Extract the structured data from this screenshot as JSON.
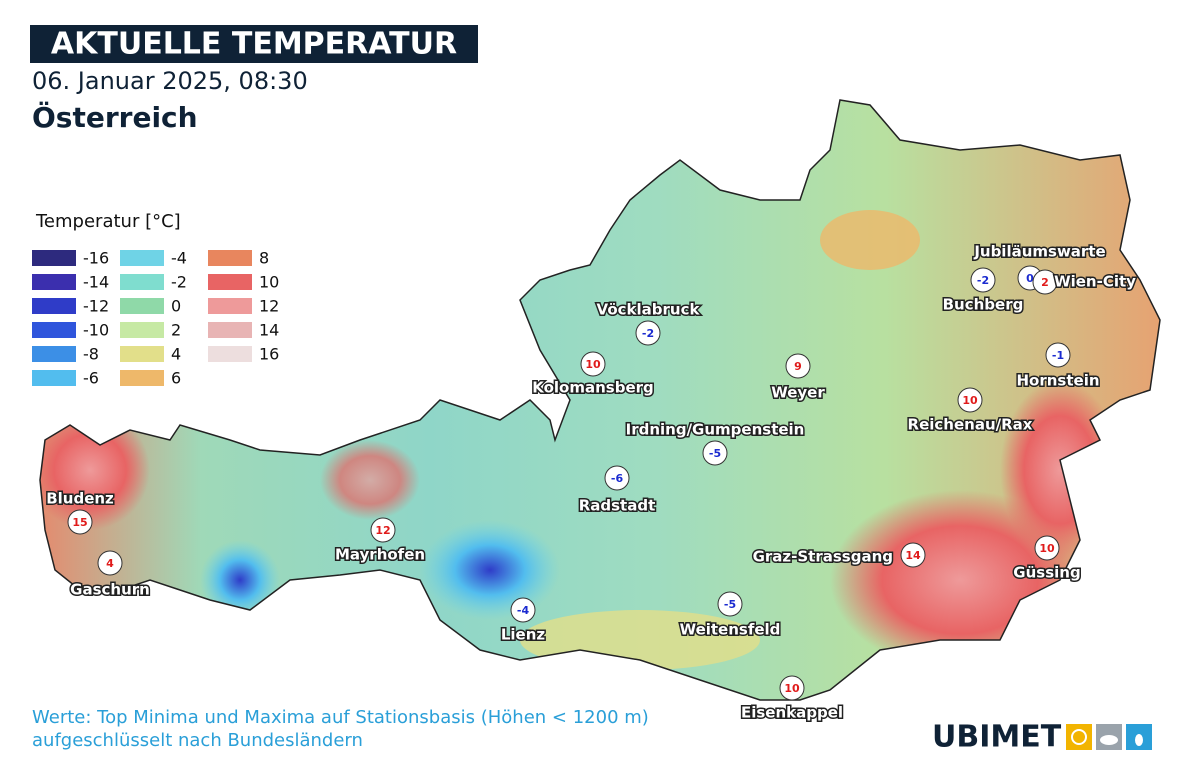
{
  "header": {
    "title": "AKTUELLE TEMPERATUR",
    "date": "06. Januar 2025, 08:30",
    "region": "Österreich"
  },
  "legend": {
    "title": "Temperatur [°C]",
    "items": [
      {
        "value": -16,
        "color": "#2d2a7e"
      },
      {
        "value": -14,
        "color": "#3b2fae"
      },
      {
        "value": -12,
        "color": "#2f3cc8"
      },
      {
        "value": -10,
        "color": "#2f55dc"
      },
      {
        "value": -8,
        "color": "#3c8fe6"
      },
      {
        "value": -6,
        "color": "#52bdee"
      },
      {
        "value": -4,
        "color": "#6fd3e6"
      },
      {
        "value": -2,
        "color": "#7fddcf"
      },
      {
        "value": 0,
        "color": "#8fd9a8"
      },
      {
        "value": 2,
        "color": "#c6e9a4"
      },
      {
        "value": 4,
        "color": "#e2df8a"
      },
      {
        "value": 6,
        "color": "#eeb86a"
      },
      {
        "value": 8,
        "color": "#e8865e"
      },
      {
        "value": 10,
        "color": "#e86464"
      },
      {
        "value": 12,
        "color": "#ee9a9a"
      },
      {
        "value": 14,
        "color": "#e8b4b4"
      },
      {
        "value": 16,
        "color": "#eddede"
      }
    ]
  },
  "stations": [
    {
      "name": "Bludenz",
      "value": 15
    },
    {
      "name": "Gaschurn",
      "value": 4
    },
    {
      "name": "Mayrhofen",
      "value": 12
    },
    {
      "name": "Lienz",
      "value": -4
    },
    {
      "name": "Radstadt",
      "value": -6
    },
    {
      "name": "Vöcklabruck",
      "value": -2
    },
    {
      "name": "Kolomansberg",
      "value": 10
    },
    {
      "name": "Weyer",
      "value": 9
    },
    {
      "name": "Irdning/Gumpenstein",
      "value": -5
    },
    {
      "name": "Weitensfeld",
      "value": -5
    },
    {
      "name": "Eisenkappel",
      "value": 10
    },
    {
      "name": "Graz-Strassgang",
      "value": 14
    },
    {
      "name": "Güssing",
      "value": 10
    },
    {
      "name": "Reichenau/Rax",
      "value": 10
    },
    {
      "name": "Hornstein",
      "value": -1
    },
    {
      "name": "Buchberg",
      "value": -2
    },
    {
      "name": "Jubiläumswarte",
      "value": 0
    },
    {
      "name": "Wien-City",
      "value": 2
    }
  ],
  "footer": {
    "line1": "Werte: Top Minima und Maxima auf Stationsbasis (Höhen < 1200 m)",
    "line2": "aufgeschlüsselt nach Bundesländern",
    "logo": "UBIMET"
  }
}
